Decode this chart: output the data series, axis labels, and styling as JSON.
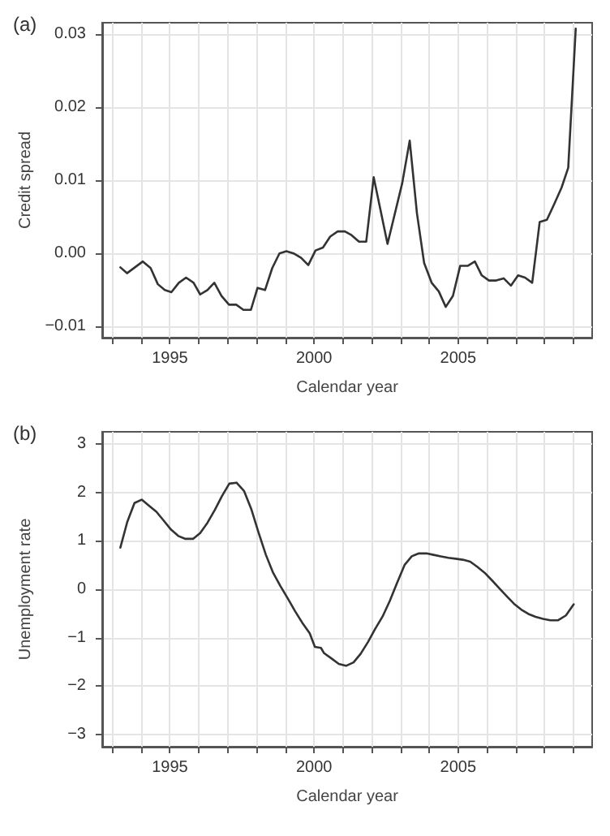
{
  "chart_data": [
    {
      "type": "line",
      "title": "(a)",
      "xlabel": "Calendar year",
      "ylabel": "Credit spread",
      "grid": true,
      "line_style": "solid",
      "marker": "none",
      "xlim": [
        1992.65,
        2009.65
      ],
      "ylim": [
        -0.0115,
        0.0315
      ],
      "xticks": [
        {
          "value": 1993,
          "label": null
        },
        {
          "value": 1994,
          "label": null
        },
        1995,
        {
          "value": 1996,
          "label": null
        },
        {
          "value": 1997,
          "label": null
        },
        {
          "value": 1998,
          "label": null
        },
        {
          "value": 1999,
          "label": null
        },
        2000,
        {
          "value": 2001,
          "label": null
        },
        {
          "value": 2002,
          "label": null
        },
        {
          "value": 2003,
          "label": null
        },
        {
          "value": 2004,
          "label": null
        },
        2005,
        {
          "value": 2006,
          "label": null
        },
        {
          "value": 2007,
          "label": null
        },
        {
          "value": 2008,
          "label": null
        },
        {
          "value": 2009,
          "label": null
        }
      ],
      "yticks": [
        {
          "value": -0.01,
          "label": "−0.01"
        },
        {
          "value": 0,
          "label": "0.00"
        },
        {
          "value": 0.01,
          "label": "0.01"
        },
        {
          "value": 0.02,
          "label": "0.02"
        },
        {
          "value": 0.03,
          "label": "0.03"
        }
      ],
      "series": [
        {
          "color": "#333333",
          "x": [
            1993.28,
            1993.51,
            1994.06,
            1994.33,
            1994.58,
            1994.82,
            1995.05,
            1995.31,
            1995.56,
            1995.82,
            1996.05,
            1996.3,
            1996.54,
            1996.79,
            1997.05,
            1997.3,
            1997.55,
            1997.81,
            1998.04,
            1998.3,
            1998.55,
            1998.8,
            1999.04,
            1999.29,
            1999.55,
            1999.8,
            2000.05,
            2000.31,
            2000.56,
            2000.82,
            2001.07,
            2001.3,
            2001.56,
            2001.81,
            2002.07,
            2002.55,
            2003.06,
            2003.32,
            2003.57,
            2003.82,
            2004.08,
            2004.33,
            2004.57,
            2004.82,
            2005.07,
            2005.33,
            2005.58,
            2005.82,
            2006.07,
            2006.32,
            2006.58,
            2006.83,
            2007.08,
            2007.32,
            2007.57,
            2007.83,
            2008.08,
            2008.33,
            2008.59,
            2008.82,
            2009.08
          ],
          "values": [
            -0.0019,
            -0.0027,
            -0.0011,
            -0.002,
            -0.0042,
            -0.005,
            -0.0053,
            -0.004,
            -0.0033,
            -0.004,
            -0.0056,
            -0.005,
            -0.004,
            -0.0058,
            -0.007,
            -0.007,
            -0.0077,
            -0.0077,
            -0.0047,
            -0.005,
            -0.002,
            0.0,
            0.0003,
            0.0,
            -0.0006,
            -0.0016,
            0.0004,
            0.0008,
            0.0023,
            0.003,
            0.003,
            0.0025,
            0.0016,
            0.0016,
            0.0104,
            0.0013,
            0.0096,
            0.0154,
            0.0055,
            -0.0013,
            -0.004,
            -0.0052,
            -0.0073,
            -0.0058,
            -0.0017,
            -0.0017,
            -0.0011,
            -0.003,
            -0.0037,
            -0.0037,
            -0.0034,
            -0.0044,
            -0.003,
            -0.0033,
            -0.004,
            0.0043,
            0.0046,
            0.0067,
            0.009,
            0.0117,
            0.0307
          ]
        }
      ]
    },
    {
      "type": "line",
      "title": "(b)",
      "xlabel": "Calendar year",
      "ylabel": "Unemployment rate",
      "grid": true,
      "line_style": "solid",
      "marker": "none",
      "xlim": [
        1992.65,
        2009.65
      ],
      "ylim": [
        -3.25,
        3.25
      ],
      "xticks": [
        {
          "value": 1993,
          "label": null
        },
        {
          "value": 1994,
          "label": null
        },
        1995,
        {
          "value": 1996,
          "label": null
        },
        {
          "value": 1997,
          "label": null
        },
        {
          "value": 1998,
          "label": null
        },
        {
          "value": 1999,
          "label": null
        },
        2000,
        {
          "value": 2001,
          "label": null
        },
        {
          "value": 2002,
          "label": null
        },
        {
          "value": 2003,
          "label": null
        },
        {
          "value": 2004,
          "label": null
        },
        2005,
        {
          "value": 2006,
          "label": null
        },
        {
          "value": 2007,
          "label": null
        },
        {
          "value": 2008,
          "label": null
        },
        {
          "value": 2009,
          "label": null
        }
      ],
      "yticks": [
        {
          "value": -3,
          "label": "−3"
        },
        {
          "value": -2,
          "label": "−2"
        },
        {
          "value": -1,
          "label": "−1"
        },
        0,
        1,
        2,
        3
      ],
      "series": [
        {
          "color": "#333333",
          "x": [
            1993.28,
            1993.52,
            1993.77,
            1994.02,
            1994.28,
            1994.53,
            1994.78,
            1995.04,
            1995.29,
            1995.54,
            1995.8,
            1996.05,
            1996.3,
            1996.56,
            1996.81,
            1997.06,
            1997.31,
            1997.57,
            1997.82,
            1998.07,
            1998.33,
            1998.58,
            1998.83,
            1999.09,
            1999.34,
            1999.59,
            1999.85,
            2000.03,
            2000.24,
            2000.35,
            2000.61,
            2000.86,
            2001.11,
            2001.37,
            2001.62,
            2001.87,
            2002.12,
            2002.38,
            2002.63,
            2002.88,
            2003.14,
            2003.39,
            2003.64,
            2003.9,
            2004.15,
            2004.4,
            2004.66,
            2004.91,
            2005.16,
            2005.42,
            2005.67,
            2005.92,
            2006.18,
            2006.43,
            2006.68,
            2006.94,
            2007.19,
            2007.44,
            2007.69,
            2007.95,
            2008.2,
            2008.47,
            2008.74,
            2009.01
          ],
          "values": [
            0.86,
            1.39,
            1.78,
            1.85,
            1.72,
            1.6,
            1.42,
            1.23,
            1.1,
            1.04,
            1.04,
            1.16,
            1.37,
            1.64,
            1.93,
            2.18,
            2.2,
            2.03,
            1.66,
            1.18,
            0.71,
            0.34,
            0.07,
            -0.19,
            -0.45,
            -0.69,
            -0.91,
            -1.19,
            -1.21,
            -1.32,
            -1.43,
            -1.54,
            -1.58,
            -1.51,
            -1.33,
            -1.09,
            -0.82,
            -0.56,
            -0.24,
            0.13,
            0.5,
            0.68,
            0.74,
            0.74,
            0.71,
            0.68,
            0.65,
            0.63,
            0.61,
            0.57,
            0.46,
            0.34,
            0.18,
            0.02,
            -0.14,
            -0.3,
            -0.42,
            -0.51,
            -0.57,
            -0.61,
            -0.64,
            -0.64,
            -0.54,
            -0.31
          ]
        }
      ]
    }
  ]
}
